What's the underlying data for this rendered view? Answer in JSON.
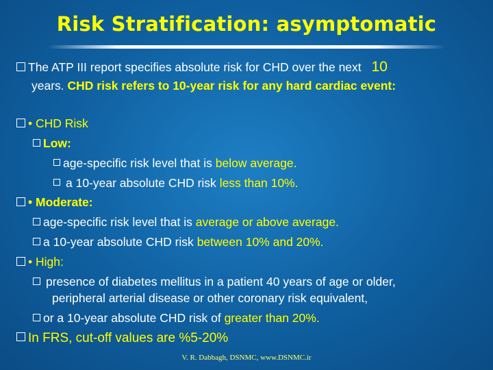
{
  "title": "Risk Stratification: asymptomatic",
  "intro": {
    "text_a": "The ATP III report specifies absolute risk for CHD over the next",
    "text_num": "10",
    "text_b": "years.",
    "text_c": "CHD risk refers to 10-year risk for any hard cardiac event:"
  },
  "chd_risk": {
    "label": "• CHD Risk"
  },
  "low": {
    "label": "Low:",
    "item1_a": "age-specific risk level that is",
    "item1_b": "below average.",
    "item2_a": "a 10-year absolute CHD risk",
    "item2_b": "less than 10%."
  },
  "moderate": {
    "label": "• Moderate:",
    "item1_a": "age-specific risk level that is",
    "item1_b": "average or above average.",
    "item2_a": "a 10-year absolute CHD risk",
    "item2_b": "between 10% and 20%."
  },
  "high": {
    "label": "• High:",
    "item1_line1": "presence of diabetes mellitus in a patient 40 years of age or older,",
    "item1_line2": "peripheral arterial disease or other coronary risk equivalent,",
    "item2_a": "or a 10-year absolute CHD risk of",
    "item2_b": "greater than 20%."
  },
  "frs": {
    "text": "In FRS, cut-off values are  %5-20%"
  },
  "footer": "V. R. Dabbagh, DSNMC,   www.DSNMC.ir",
  "colors": {
    "accent": "#ffff00",
    "background": "#0f5f9f",
    "text": "#ffffff"
  }
}
